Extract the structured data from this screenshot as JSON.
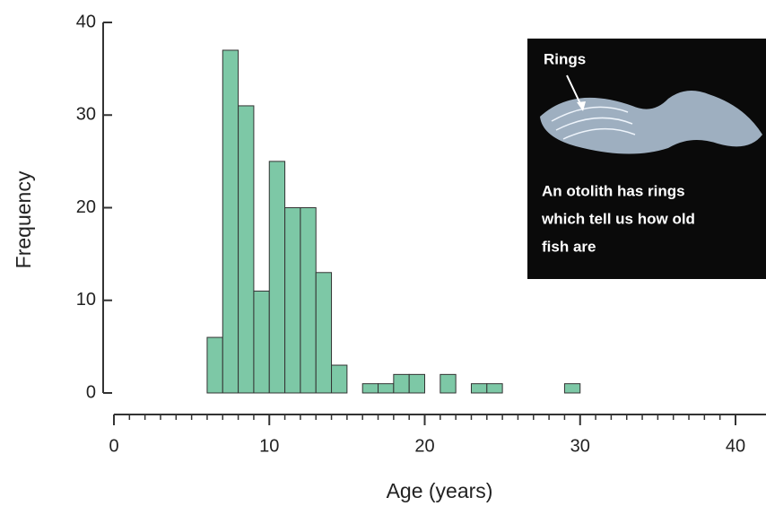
{
  "chart_data": {
    "type": "histogram",
    "xlabel": "Age (years)",
    "ylabel": "Frequency",
    "bins": [
      6,
      7,
      8,
      9,
      10,
      11,
      12,
      13,
      14,
      15,
      16,
      17,
      18,
      19,
      20,
      21,
      22,
      23,
      24,
      25,
      26,
      27,
      28,
      29,
      30
    ],
    "values": [
      6,
      37,
      31,
      11,
      25,
      20,
      20,
      13,
      3,
      0,
      1,
      1,
      2,
      2,
      0,
      2,
      0,
      1,
      1,
      0,
      0,
      0,
      0,
      1
    ],
    "color": "#7dc8a6",
    "xlim": [
      0,
      40
    ],
    "xticks": [
      0,
      10,
      20,
      30,
      40
    ],
    "ylim": [
      0,
      40
    ],
    "yticks": [
      0,
      10,
      20,
      30,
      40
    ],
    "annotations": {
      "arrow_label": "Rings",
      "caption": [
        "An otolith has rings",
        "which tell us how old",
        "fish are"
      ]
    }
  }
}
